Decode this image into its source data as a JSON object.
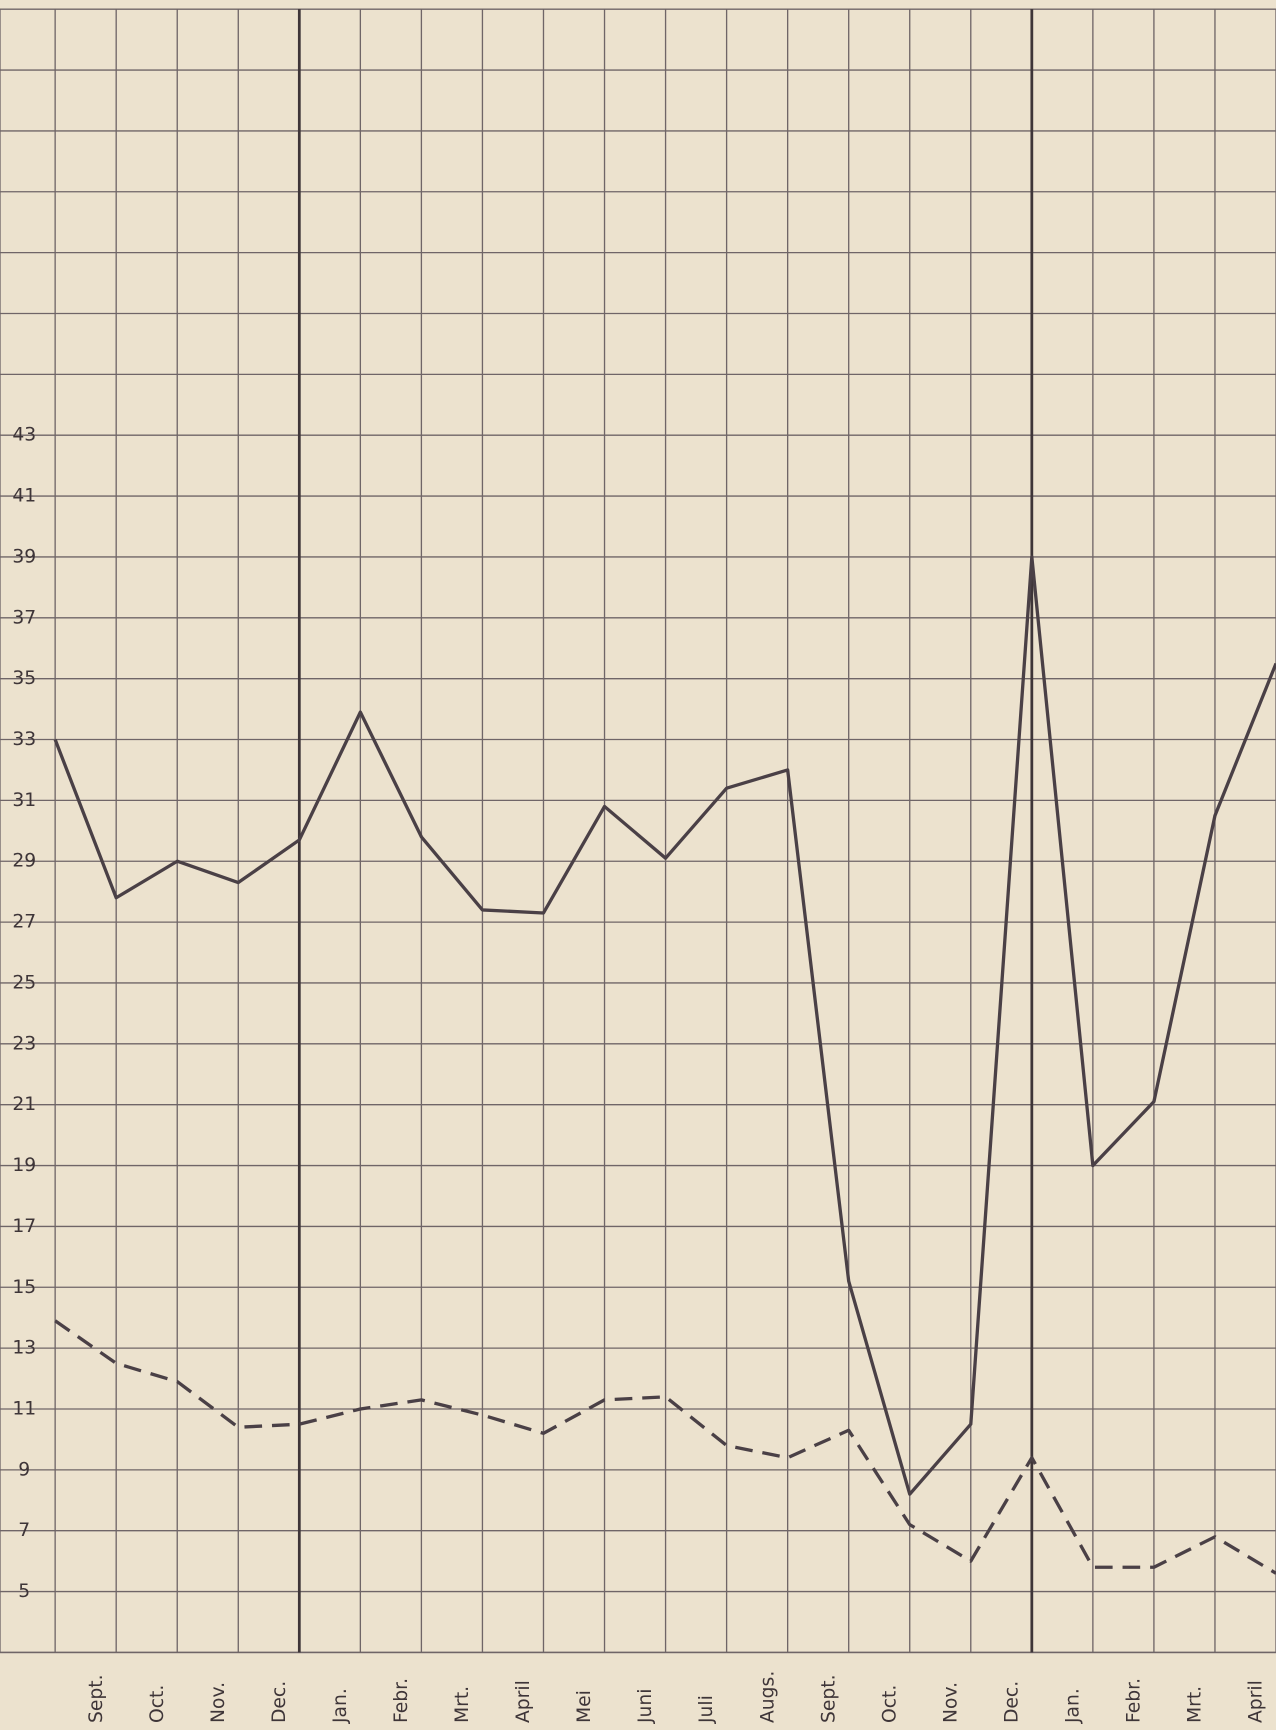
{
  "chart_data": {
    "type": "line",
    "categories": [
      null,
      "Sept.",
      "Oct.",
      "Nov.",
      "Dec.",
      "Jan.",
      "Febr.",
      "Mrt.",
      "April",
      "Mei",
      "Juni",
      "Juli",
      "Augs.",
      "Sept.",
      "Oct.",
      "Nov.",
      "Dec.",
      "Jan.",
      "Febr.",
      "Mrt.",
      "April"
    ],
    "series": [
      {
        "color": "#4a4046",
        "dash": "solid",
        "values": [
          33,
          27.8,
          29,
          28.3,
          29.7,
          33.9,
          29.8,
          27.4,
          27.3,
          30.8,
          29.1,
          31.4,
          32,
          15.2,
          8.2,
          10.5,
          39,
          19,
          21.1,
          30.5,
          35.5
        ]
      },
      {
        "color": "#4a4046",
        "dash": "dashed",
        "values": [
          13.9,
          12.5,
          11.9,
          10.4,
          10.5,
          11,
          11.3,
          10.8,
          10.2,
          11.3,
          11.4,
          9.8,
          9.4,
          10.3,
          7.2,
          6,
          9.4,
          5.8,
          5.8,
          6.8,
          5.6
        ]
      }
    ],
    "ylim": [
      3,
      57
    ],
    "yticks": [
      5,
      7,
      9,
      11,
      13,
      15,
      17,
      19,
      21,
      23,
      25,
      27,
      29,
      31,
      33,
      35,
      37,
      39,
      41,
      43
    ],
    "grid": true
  }
}
